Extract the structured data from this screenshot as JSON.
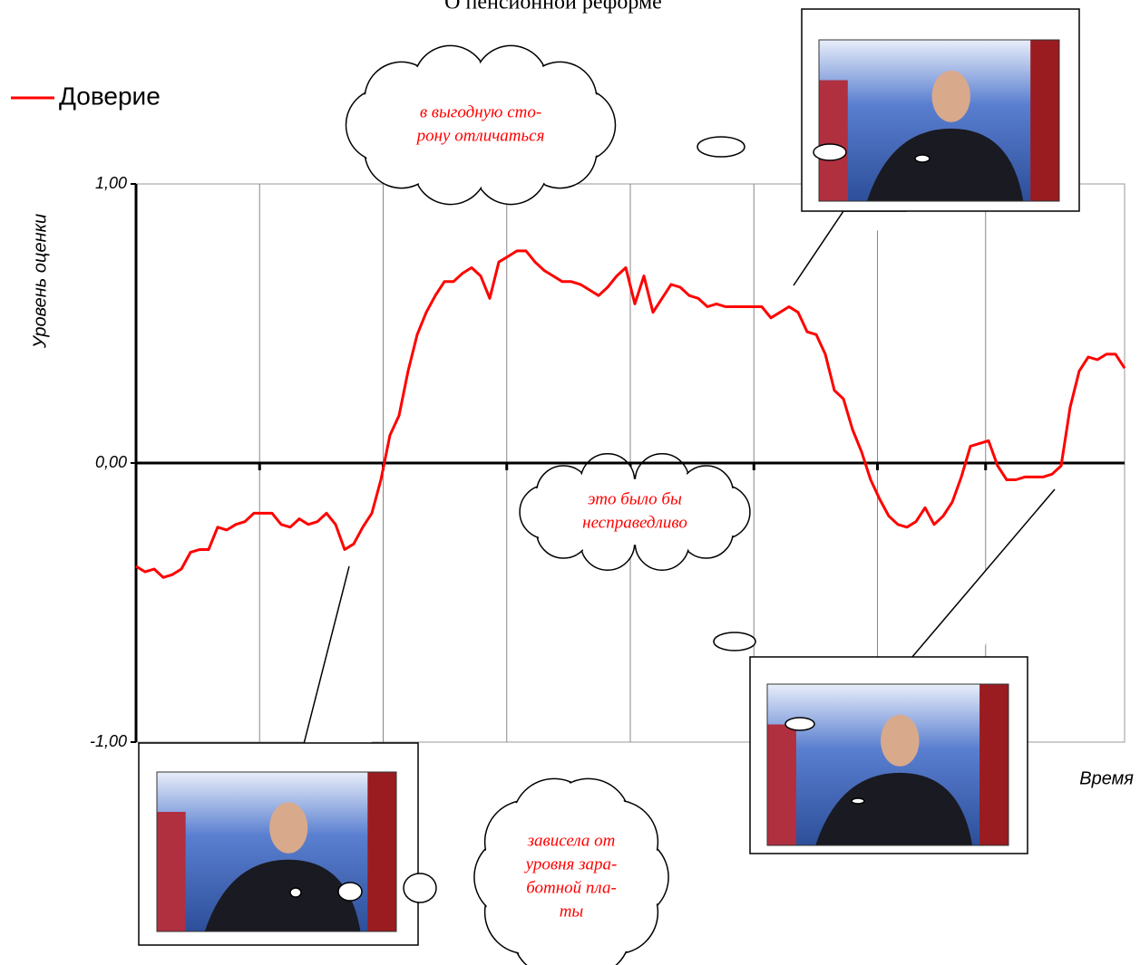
{
  "chart_data": {
    "type": "line",
    "title": "О пенсионной реформе",
    "y_label": "Уровень оценки",
    "x_label": "Время",
    "ylim": [
      -1,
      1
    ],
    "yticks": [
      {
        "value": 1,
        "label": "1,00"
      },
      {
        "value": 0,
        "label": "0,00"
      },
      {
        "value": -1,
        "label": "-1,00"
      }
    ],
    "grid": true,
    "legend": "top-left",
    "series": [
      {
        "name": "Доверие",
        "color": "#ff0000",
        "values": [
          -0.37,
          -0.39,
          -0.38,
          -0.41,
          -0.4,
          -0.38,
          -0.32,
          -0.31,
          -0.31,
          -0.23,
          -0.24,
          -0.22,
          -0.21,
          -0.18,
          -0.18,
          -0.18,
          -0.22,
          -0.23,
          -0.2,
          -0.22,
          -0.21,
          -0.18,
          -0.22,
          -0.31,
          -0.29,
          -0.23,
          -0.18,
          -0.06,
          0.1,
          0.17,
          0.33,
          0.46,
          0.54,
          0.6,
          0.65,
          0.65,
          0.68,
          0.7,
          0.67,
          0.59,
          0.72,
          0.74,
          0.76,
          0.76,
          0.72,
          0.69,
          0.67,
          0.65,
          0.65,
          0.64,
          0.62,
          0.6,
          0.63,
          0.67,
          0.7,
          0.57,
          0.67,
          0.54,
          0.59,
          0.64,
          0.63,
          0.6,
          0.59,
          0.56,
          0.57,
          0.56,
          0.56,
          0.56,
          0.56,
          0.56,
          0.52,
          0.54,
          0.56,
          0.54,
          0.47,
          0.46,
          0.39,
          0.26,
          0.23,
          0.12,
          0.04,
          -0.06,
          -0.13,
          -0.19,
          -0.22,
          -0.23,
          -0.21,
          -0.16,
          -0.22,
          -0.19,
          -0.14,
          -0.05,
          0.06,
          0.07,
          0.08,
          -0.01,
          -0.06,
          -0.06,
          -0.05,
          -0.05,
          -0.05,
          -0.04,
          -0.01,
          0.2,
          0.33,
          0.38,
          0.37,
          0.39,
          0.39,
          0.34
        ]
      }
    ],
    "annotations": [
      {
        "lines": [
          "в выгодную сто-",
          "рону отличаться"
        ]
      },
      {
        "lines": [
          "это было бы",
          "несправедливо"
        ]
      },
      {
        "lines": [
          "зависела от",
          "уровня зара-",
          "ботной пла-",
          "ты"
        ]
      }
    ]
  }
}
